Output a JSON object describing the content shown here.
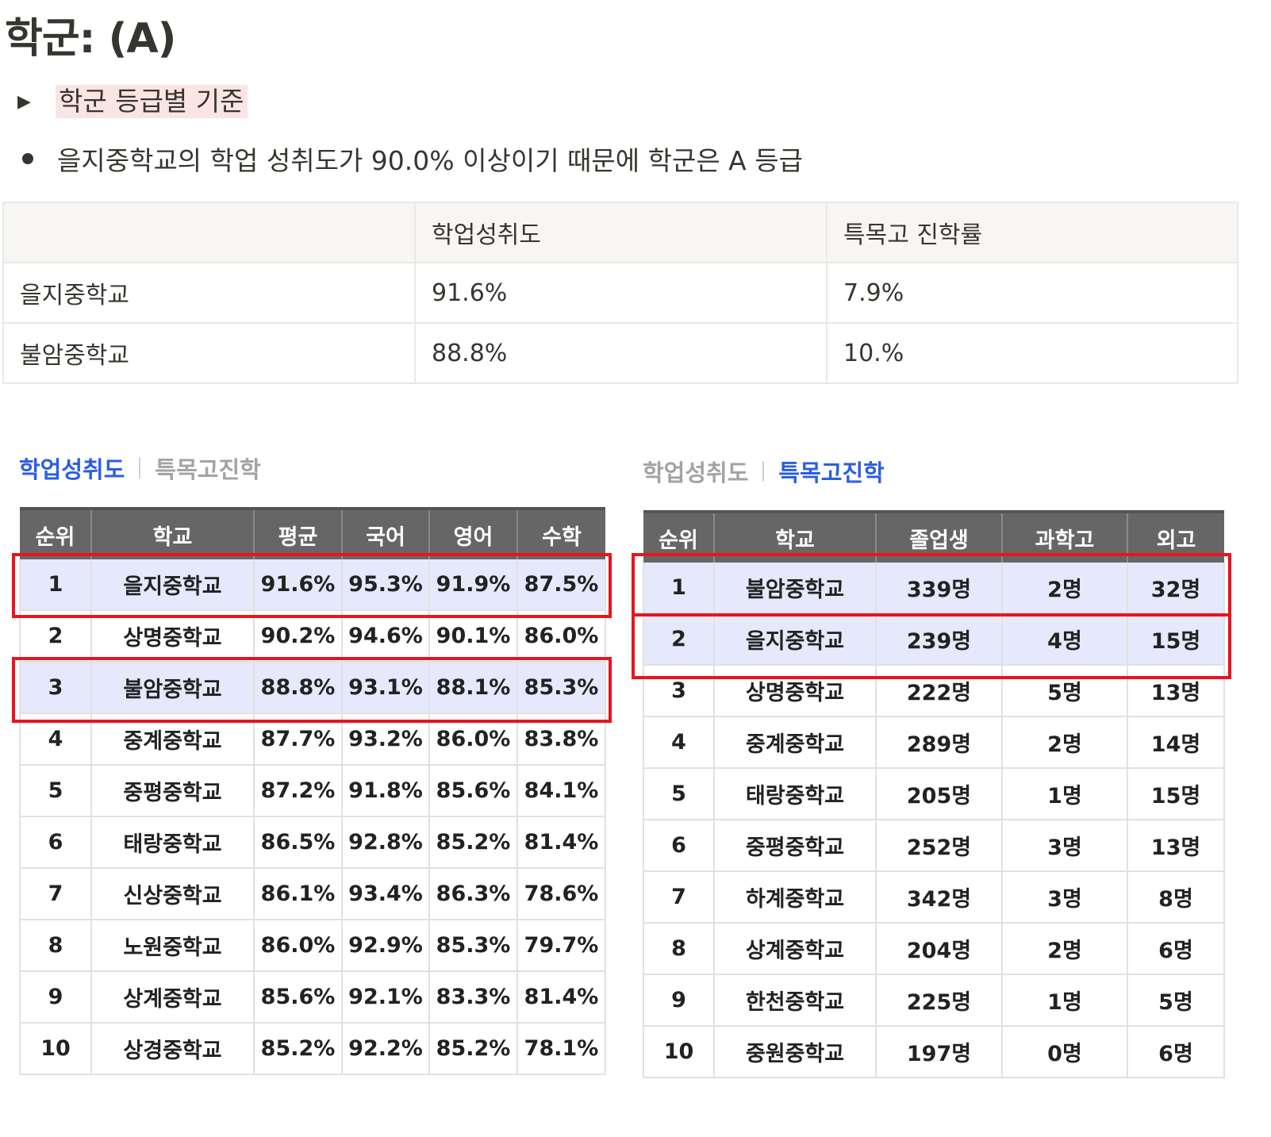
{
  "title": "학군: (A)",
  "toggle": {
    "icon": "triangle-right-icon",
    "label": "학군 등급별 기준"
  },
  "bullet": {
    "text": "을지중학교의 학업 성취도가 90.0% 이상이기 때문에 학군은 A 등급"
  },
  "summary_table": {
    "header": [
      "",
      "학업성취도",
      "특목고 진학률"
    ],
    "rows": [
      [
        "을지중학교",
        "91.6%",
        "7.9%"
      ],
      [
        "불암중학교",
        "88.8%",
        "10.%"
      ]
    ]
  },
  "left_panel": {
    "tab_active": "학업성취도",
    "tab_inactive": "특목고진학",
    "columns": [
      "순위",
      "학교",
      "평균",
      "국어",
      "영어",
      "수학"
    ],
    "rows": [
      [
        "1",
        "을지중학교",
        "91.6%",
        "95.3%",
        "91.9%",
        "87.5%"
      ],
      [
        "2",
        "상명중학교",
        "90.2%",
        "94.6%",
        "90.1%",
        "86.0%"
      ],
      [
        "3",
        "불암중학교",
        "88.8%",
        "93.1%",
        "88.1%",
        "85.3%"
      ],
      [
        "4",
        "중계중학교",
        "87.7%",
        "93.2%",
        "86.0%",
        "83.8%"
      ],
      [
        "5",
        "중평중학교",
        "87.2%",
        "91.8%",
        "85.6%",
        "84.1%"
      ],
      [
        "6",
        "태랑중학교",
        "86.5%",
        "92.8%",
        "85.2%",
        "81.4%"
      ],
      [
        "7",
        "신상중학교",
        "86.1%",
        "93.4%",
        "86.3%",
        "78.6%"
      ],
      [
        "8",
        "노원중학교",
        "86.0%",
        "92.9%",
        "85.3%",
        "79.7%"
      ],
      [
        "9",
        "상계중학교",
        "85.6%",
        "92.1%",
        "83.3%",
        "81.4%"
      ],
      [
        "10",
        "상경중학교",
        "85.2%",
        "92.2%",
        "85.2%",
        "78.1%"
      ]
    ],
    "highlighted_rows": [
      1,
      3
    ]
  },
  "right_panel": {
    "tab_inactive": "학업성취도",
    "tab_active": "특목고진학",
    "columns": [
      "순위",
      "학교",
      "졸업생",
      "과학고",
      "외고"
    ],
    "rows": [
      [
        "1",
        "불암중학교",
        "339명",
        "2명",
        "32명"
      ],
      [
        "2",
        "을지중학교",
        "239명",
        "4명",
        "15명"
      ],
      [
        "3",
        "상명중학교",
        "222명",
        "5명",
        "13명"
      ],
      [
        "4",
        "중계중학교",
        "289명",
        "2명",
        "14명"
      ],
      [
        "5",
        "태랑중학교",
        "205명",
        "1명",
        "15명"
      ],
      [
        "6",
        "중평중학교",
        "252명",
        "3명",
        "13명"
      ],
      [
        "7",
        "하계중학교",
        "342명",
        "3명",
        "8명"
      ],
      [
        "8",
        "상계중학교",
        "204명",
        "2명",
        "6명"
      ],
      [
        "9",
        "한천중학교",
        "225명",
        "1명",
        "5명"
      ],
      [
        "10",
        "중원중학교",
        "197명",
        "0명",
        "6명"
      ]
    ],
    "highlighted_rows": [
      1,
      2
    ]
  },
  "colors": {
    "tab_active": "#2a5ee6",
    "tab_inactive": "#a3a3a3",
    "table_header_bg": "#666666",
    "highlight_row_bg": "#e6e8fc",
    "highlight_box": "#e8141e",
    "toggle_label_bg": "#fbe4e4"
  }
}
